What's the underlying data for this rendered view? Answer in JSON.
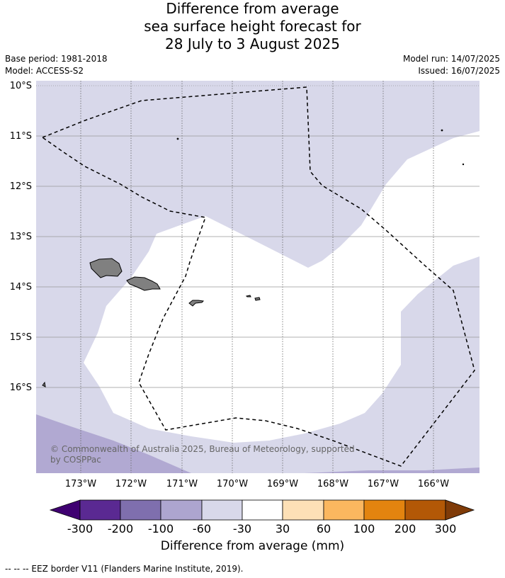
{
  "title": {
    "line1": "Difference from average",
    "line2": "sea surface height forecast for",
    "line3": "28 July to 3 August 2025"
  },
  "meta": {
    "base_period": "Base period: 1981-2018",
    "model": "Model: ACCESS-S2",
    "model_run": "Model run: 14/07/2025",
    "issued": "Issued: 16/07/2025"
  },
  "map": {
    "lat_labels": [
      "10°S",
      "11°S",
      "12°S",
      "13°S",
      "14°S",
      "15°S",
      "16°S"
    ],
    "lon_labels": [
      "173°W",
      "172°W",
      "171°W",
      "170°W",
      "169°W",
      "168°W",
      "167°W",
      "166°W"
    ],
    "copyright_line1": "© Commonwealth of Australia 2025, Bureau of Meteorology, supported",
    "copyright_line2": "by COSPPac",
    "colors": {
      "band_-60_-30": "#d8d8ea",
      "band_-100_-60": "#b1a9d2",
      "band_-30_30": "#ffffff",
      "land": "#808080",
      "gridline": "#999999",
      "eez": "#000000"
    }
  },
  "colorbar": {
    "title": "Difference from average (mm)",
    "tick_labels": [
      "-300",
      "-200",
      "-100",
      "-60",
      "-30",
      "30",
      "60",
      "100",
      "200",
      "300"
    ],
    "colors": [
      "#3f0071",
      "#5a2992",
      "#7f6fae",
      "#ada5cf",
      "#d8d8ea",
      "#ffffff",
      "#fde0b6",
      "#fbb75f",
      "#e3840f",
      "#b35806",
      "#7f3b08"
    ]
  },
  "footer": "--  --  -- EEZ border V11 (Flanders Marine Institute, 2019)."
}
